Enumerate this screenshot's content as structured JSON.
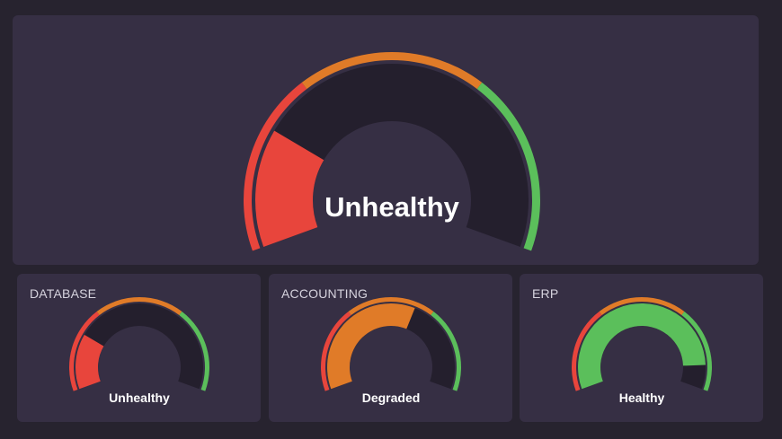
{
  "colors": {
    "background": "#27232f",
    "panel": "#362f44",
    "gauge_track": "#241f2d",
    "red": "#e8453c",
    "orange": "#e07b28",
    "green": "#5bbf5b"
  },
  "main_gauge": {
    "status": "Unhealthy",
    "value_fraction": 0.23
  },
  "cards": [
    {
      "title": "DATABASE",
      "status": "Unhealthy",
      "value_fraction": 0.23,
      "fill_color": "red"
    },
    {
      "title": "ACCOUNTING",
      "status": "Degraded",
      "value_fraction": 0.6,
      "fill_color": "orange"
    },
    {
      "title": "ERP",
      "status": "Healthy",
      "value_fraction": 0.9,
      "fill_color": "green"
    }
  ],
  "zones": [
    {
      "name": "unhealthy",
      "from": 0,
      "to": 0.33,
      "color": "red"
    },
    {
      "name": "degraded",
      "from": 0.33,
      "to": 0.67,
      "color": "orange"
    },
    {
      "name": "healthy",
      "from": 0.67,
      "to": 1,
      "color": "green"
    }
  ]
}
